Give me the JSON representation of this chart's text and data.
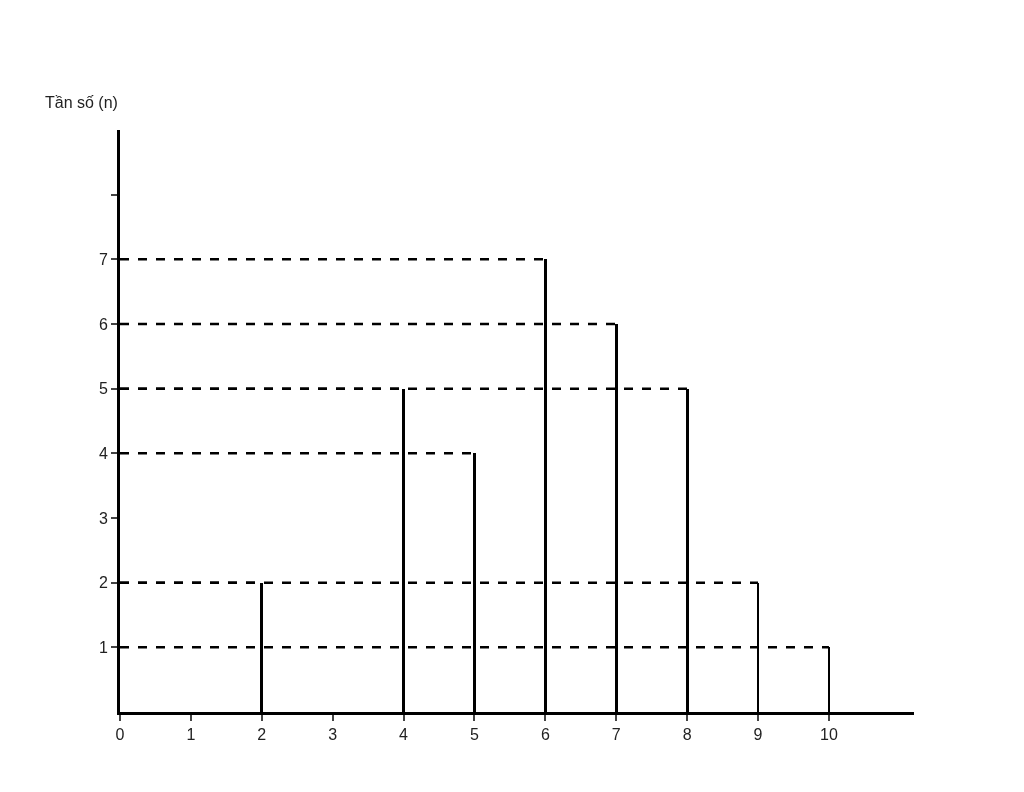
{
  "chart_data": {
    "type": "bar",
    "ylabel": "Tần số (n)",
    "series": [
      {
        "color": "#000000",
        "x": [
          2,
          4,
          5,
          6,
          7,
          8,
          9,
          10
        ],
        "values": [
          2,
          5,
          4,
          7,
          6,
          5,
          2,
          1
        ]
      },
      {
        "type": "line",
        "color": "#000000",
        "line_style": "dashed",
        "x": [
          0,
          2
        ],
        "values": [
          2,
          2
        ]
      },
      {
        "type": "line",
        "color": "#000000",
        "line_style": "dashed",
        "x": [
          0,
          4
        ],
        "values": [
          5,
          5
        ]
      },
      {
        "type": "line",
        "color": "#000000",
        "line_style": "dashed",
        "x": [
          0,
          5
        ],
        "values": [
          4,
          4
        ]
      },
      {
        "type": "line",
        "color": "#000000",
        "line_style": "dashed",
        "x": [
          0,
          6
        ],
        "values": [
          7,
          7
        ]
      },
      {
        "type": "line",
        "color": "#000000",
        "line_style": "dashed",
        "x": [
          0,
          7
        ],
        "values": [
          6,
          6
        ]
      },
      {
        "type": "line",
        "color": "#000000",
        "line_style": "dashed",
        "x": [
          0,
          8
        ],
        "values": [
          5,
          5
        ]
      },
      {
        "type": "line",
        "color": "#000000",
        "line_style": "dashed",
        "x": [
          0,
          9
        ],
        "values": [
          2,
          2
        ]
      },
      {
        "type": "line",
        "color": "#000000",
        "line_style": "dashed",
        "x": [
          0,
          10
        ],
        "values": [
          1,
          1
        ]
      }
    ],
    "xlim": [
      0,
      11.2
    ],
    "xticks": [
      0,
      1,
      2,
      3,
      4,
      5,
      6,
      7,
      8,
      9,
      10
    ],
    "ylim": [
      0,
      9
    ],
    "yticks": [
      1,
      2,
      3,
      4,
      5,
      6,
      7,
      {
        "value": 8,
        "label": null
      }
    ],
    "marker": "none",
    "grid": false
  }
}
